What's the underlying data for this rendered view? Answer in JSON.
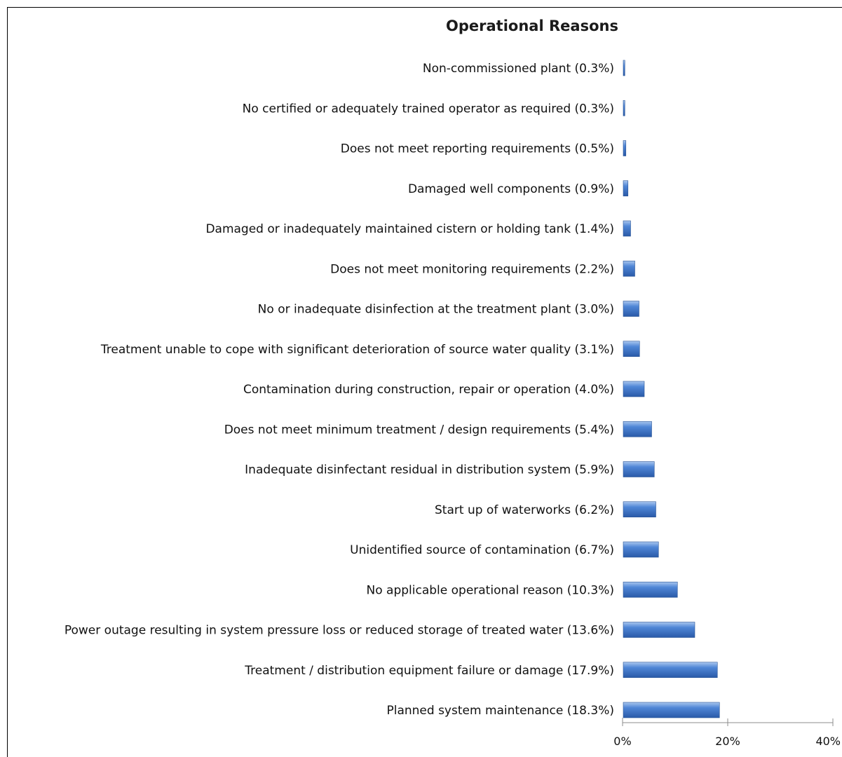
{
  "chart_data": {
    "type": "bar",
    "orientation": "horizontal",
    "title": "Operational Reasons",
    "xlabel": "",
    "ylabel": "",
    "xlim": [
      0,
      40
    ],
    "x_ticks": [
      "0%",
      "20%",
      "40%"
    ],
    "grid": false,
    "legend": "none",
    "bar_color": "#3f74c8",
    "categories": [
      "Non-commissioned plant (0.3%)",
      "No certified or adequately trained operator as required (0.3%)",
      "Does not meet reporting requirements (0.5%)",
      "Damaged well components (0.9%)",
      "Damaged or inadequately maintained cistern or holding tank (1.4%)",
      "Does not meet monitoring requirements (2.2%)",
      "No or inadequate disinfection at the treatment plant (3.0%)",
      "Treatment unable to cope with significant deterioration of source water quality (3.1%)",
      "Contamination during construction, repair or operation (4.0%)",
      "Does not meet minimum treatment / design requirements (5.4%)",
      "Inadequate disinfectant residual in distribution system (5.9%)",
      "Start up of waterworks (6.2%)",
      "Unidentified source of contamination (6.7%)",
      "No applicable operational reason (10.3%)",
      "Power outage resulting in system pressure loss or reduced storage of treated water (13.6%)",
      "Treatment / distribution equipment failure or damage (17.9%)",
      "Planned system maintenance (18.3%)"
    ],
    "values": [
      0.3,
      0.3,
      0.5,
      0.9,
      1.4,
      2.2,
      3.0,
      3.1,
      4.0,
      5.4,
      5.9,
      6.2,
      6.7,
      10.3,
      13.6,
      17.9,
      18.3
    ]
  }
}
